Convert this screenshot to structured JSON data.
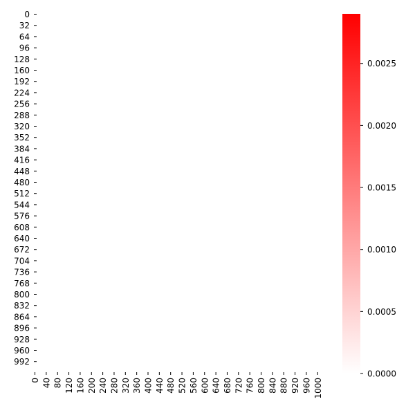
{
  "chart_data": {
    "type": "heatmap",
    "title": "",
    "xlabel": "",
    "ylabel": "",
    "grid": false,
    "x_range": [
      0,
      1023
    ],
    "y_range": [
      0,
      1023
    ],
    "x_ticks": [
      "0",
      "40",
      "80",
      "120",
      "160",
      "200",
      "240",
      "280",
      "320",
      "360",
      "400",
      "440",
      "480",
      "520",
      "560",
      "600",
      "640",
      "680",
      "720",
      "760",
      "800",
      "840",
      "880",
      "920",
      "960",
      "1000"
    ],
    "y_ticks": [
      "0",
      "32",
      "64",
      "96",
      "128",
      "160",
      "192",
      "224",
      "256",
      "288",
      "320",
      "352",
      "384",
      "416",
      "448",
      "480",
      "512",
      "544",
      "576",
      "608",
      "640",
      "672",
      "704",
      "736",
      "768",
      "800",
      "832",
      "864",
      "896",
      "928",
      "960",
      "992"
    ],
    "values_note_visible": "all cells render at colorbar minimum (white)",
    "value_range": [
      0,
      0.0029
    ],
    "colorbar": {
      "ticks": [
        "0.0000",
        "0.0005",
        "0.0010",
        "0.0015",
        "0.0020",
        "0.0025"
      ],
      "tick_values": [
        0,
        0.0005,
        0.001,
        0.0015,
        0.002,
        0.0025
      ],
      "min": 0,
      "max": 0.0029,
      "color_low": "#ffffff",
      "color_high": "#ff0000",
      "position": "right"
    }
  }
}
